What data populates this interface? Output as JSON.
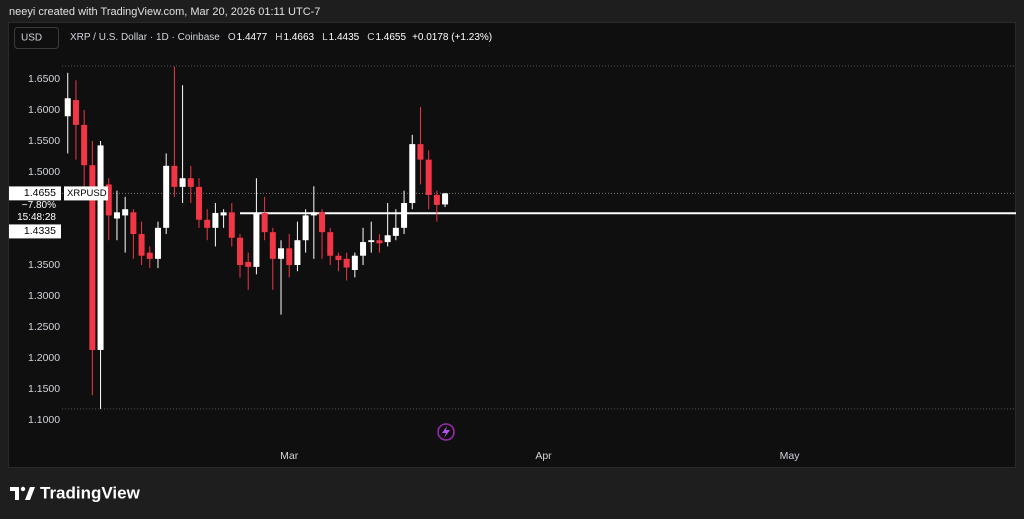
{
  "header": {
    "attribution": "neeyi created with TradingView.com, Mar 20, 2026 01:11 UTC-7"
  },
  "chart_data": {
    "type": "candlestick",
    "currency": "USD",
    "symbol_title": "XRP / U.S. Dollar · 1D · Coinbase",
    "ohlc_labels": [
      "O",
      "H",
      "L",
      "C"
    ],
    "ohlc_values": [
      1.4477,
      1.4663,
      1.4435,
      1.4655
    ],
    "change": "+0.0178 (+1.23%)",
    "open": [
      1.59,
      1.616,
      1.576,
      1.511,
      1.213,
      1.48,
      1.425,
      1.43,
      1.435,
      1.4,
      1.37,
      1.36,
      1.41,
      1.51,
      1.476,
      1.49,
      1.476,
      1.423,
      1.41,
      1.43,
      1.435,
      1.394,
      1.355,
      1.347,
      1.434,
      1.403,
      1.36,
      1.377,
      1.35,
      1.39,
      1.43,
      1.435,
      1.403,
      1.365,
      1.36,
      1.342,
      1.365,
      1.387,
      1.39,
      1.387,
      1.397,
      1.41,
      1.45,
      1.545,
      1.52,
      1.463,
      1.4477
    ],
    "high": [
      1.66,
      1.648,
      1.6,
      1.55,
      1.55,
      1.49,
      1.47,
      1.46,
      1.44,
      1.42,
      1.38,
      1.42,
      1.53,
      1.67,
      1.64,
      1.51,
      1.49,
      1.44,
      1.45,
      1.44,
      1.45,
      1.4,
      1.37,
      1.49,
      1.46,
      1.41,
      1.39,
      1.4,
      1.42,
      1.44,
      1.477,
      1.44,
      1.41,
      1.37,
      1.37,
      1.37,
      1.41,
      1.42,
      1.4,
      1.45,
      1.44,
      1.47,
      1.56,
      1.605,
      1.535,
      1.47,
      1.4663
    ],
    "low": [
      1.53,
      1.52,
      1.455,
      1.14,
      1.118,
      1.39,
      1.39,
      1.37,
      1.36,
      1.35,
      1.345,
      1.345,
      1.4,
      1.46,
      1.45,
      1.45,
      1.41,
      1.39,
      1.38,
      1.41,
      1.38,
      1.33,
      1.31,
      1.335,
      1.39,
      1.31,
      1.27,
      1.33,
      1.34,
      1.37,
      1.36,
      1.36,
      1.35,
      1.34,
      1.325,
      1.33,
      1.35,
      1.37,
      1.37,
      1.38,
      1.39,
      1.4,
      1.44,
      1.48,
      1.44,
      1.42,
      1.4435
    ],
    "close": [
      1.619,
      1.576,
      1.511,
      1.213,
      1.543,
      1.43,
      1.435,
      1.44,
      1.4,
      1.365,
      1.36,
      1.41,
      1.51,
      1.476,
      1.49,
      1.476,
      1.423,
      1.41,
      1.434,
      1.435,
      1.394,
      1.35,
      1.347,
      1.434,
      1.403,
      1.36,
      1.377,
      1.35,
      1.39,
      1.43,
      1.435,
      1.403,
      1.365,
      1.358,
      1.346,
      1.365,
      1.387,
      1.39,
      1.385,
      1.398,
      1.41,
      1.45,
      1.545,
      1.52,
      1.463,
      1.447,
      1.4655
    ],
    "up_color": "#ffffff",
    "down_color": "#f23645",
    "ylim": [
      1.06,
      1.677
    ],
    "yticks": [
      {
        "value": 1.1,
        "label": "1.1000"
      },
      {
        "value": 1.15,
        "label": "1.1500"
      },
      {
        "value": 1.2,
        "label": "1.2000"
      },
      {
        "value": 1.25,
        "label": "1.2500"
      },
      {
        "value": 1.3,
        "label": "1.3000"
      },
      {
        "value": 1.35,
        "label": "1.3500"
      },
      {
        "value": 1.4,
        "label": "1.4000"
      },
      {
        "value": 1.45,
        "label": "1.4500"
      },
      {
        "value": 1.5,
        "label": "1.5000"
      },
      {
        "value": 1.55,
        "label": "1.5500"
      },
      {
        "value": 1.6,
        "label": "1.6000"
      },
      {
        "value": 1.65,
        "label": "1.6500"
      }
    ],
    "xlim": [
      -0.7,
      115.6
    ],
    "xticks": [
      {
        "value": 27,
        "label": "Mar"
      },
      {
        "value": 58,
        "label": "Apr"
      },
      {
        "value": 88,
        "label": "May"
      }
    ],
    "last_price": {
      "value": 1.4655,
      "symbol": "XRPUSD",
      "change": "−7.80%",
      "countdown": "15:48:28"
    },
    "hline": {
      "value": 1.4335,
      "color": "#ffffff"
    },
    "range_high": 1.671,
    "range_low": 1.118
  },
  "footer": {
    "logo": "TradingView"
  }
}
